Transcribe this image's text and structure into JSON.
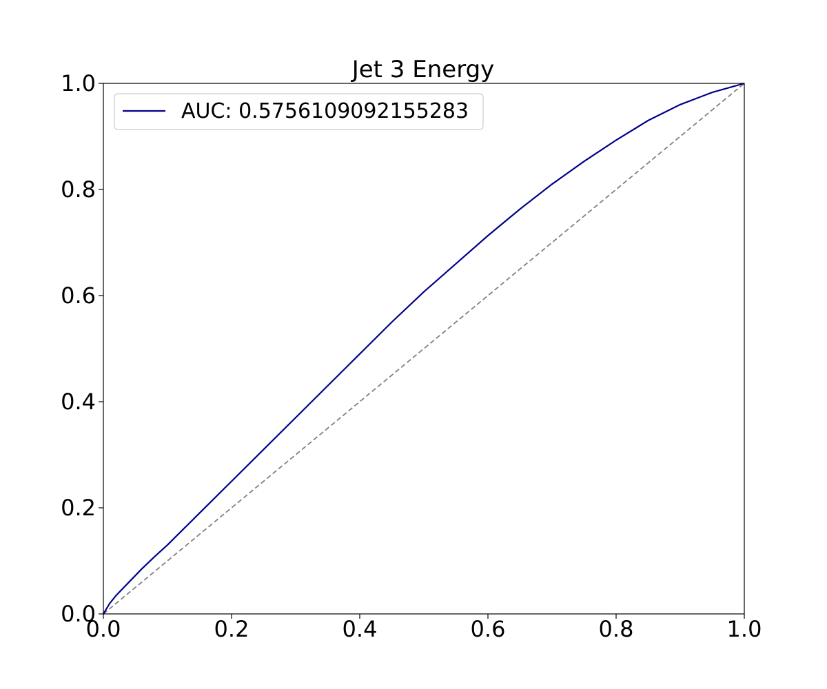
{
  "chart_data": {
    "type": "line",
    "title": "Jet 3 Energy",
    "xlabel": "",
    "ylabel": "",
    "xlim": [
      0.0,
      1.0
    ],
    "ylim": [
      0.0,
      1.0
    ],
    "x_ticks": [
      "0.0",
      "0.2",
      "0.4",
      "0.6",
      "0.8",
      "1.0"
    ],
    "y_ticks": [
      "0.0",
      "0.2",
      "0.4",
      "0.6",
      "0.8",
      "1.0"
    ],
    "grid": false,
    "legend_position": "top-left",
    "series": [
      {
        "name": "AUC: 0.5756109092155283",
        "color": "#00008b",
        "style": "solid",
        "x": [
          0.0,
          0.005,
          0.01,
          0.02,
          0.04,
          0.06,
          0.08,
          0.1,
          0.15,
          0.2,
          0.25,
          0.3,
          0.35,
          0.4,
          0.45,
          0.5,
          0.55,
          0.6,
          0.65,
          0.7,
          0.75,
          0.8,
          0.85,
          0.9,
          0.95,
          1.0
        ],
        "y": [
          0.0,
          0.01,
          0.02,
          0.035,
          0.06,
          0.085,
          0.108,
          0.13,
          0.19,
          0.25,
          0.31,
          0.37,
          0.43,
          0.49,
          0.55,
          0.607,
          0.66,
          0.713,
          0.763,
          0.81,
          0.853,
          0.893,
          0.93,
          0.96,
          0.983,
          1.0
        ]
      },
      {
        "name": "",
        "color": "#808080",
        "style": "dashed",
        "x": [
          0.0,
          1.0
        ],
        "y": [
          0.0,
          1.0
        ]
      }
    ]
  }
}
